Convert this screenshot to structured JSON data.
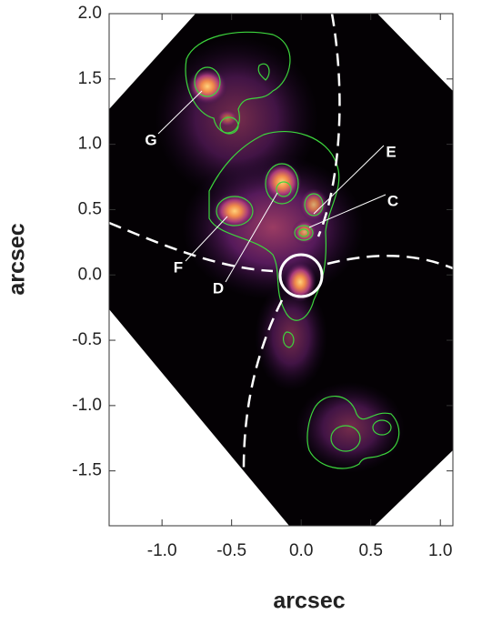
{
  "chart_data": {
    "type": "image",
    "x_label": "arcsec",
    "y_label": "arcsec",
    "xlim": [
      -1.38,
      1.09
    ],
    "ylim": [
      -1.92,
      2.0
    ],
    "xticks": [
      {
        "value": -1.0,
        "label": "-1.0"
      },
      {
        "value": -0.5,
        "label": "-0.5"
      },
      {
        "value": 0.0,
        "label": "0.0"
      },
      {
        "value": 0.5,
        "label": "0.5"
      },
      {
        "value": 1.0,
        "label": "1.0"
      }
    ],
    "yticks": [
      {
        "value": -1.5,
        "label": "-1.5"
      },
      {
        "value": -1.0,
        "label": "-1.0"
      },
      {
        "value": -0.5,
        "label": "-0.5"
      },
      {
        "value": 0.0,
        "label": "0.0"
      },
      {
        "value": 0.5,
        "label": "0.5"
      },
      {
        "value": 1.0,
        "label": "1.0"
      },
      {
        "value": 1.5,
        "label": "1.5"
      },
      {
        "value": 2.0,
        "label": "2.0"
      }
    ],
    "annotations": [
      "G",
      "F",
      "D",
      "E",
      "C"
    ]
  }
}
